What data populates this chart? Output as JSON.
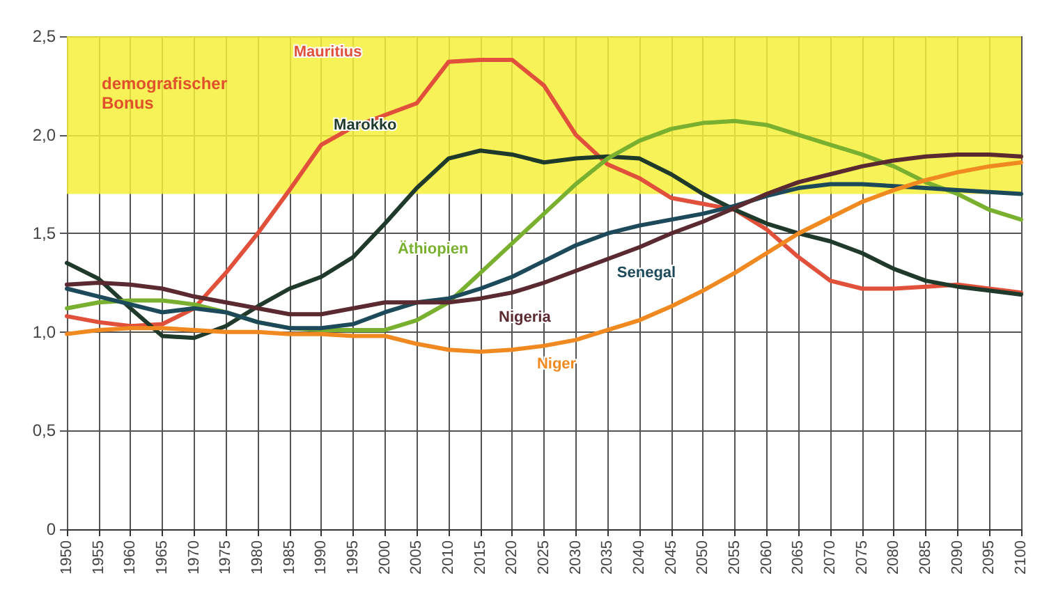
{
  "chart_data": {
    "type": "line",
    "x": [
      1950,
      1955,
      1960,
      1965,
      1970,
      1975,
      1980,
      1985,
      1990,
      1995,
      2000,
      2005,
      2010,
      2015,
      2020,
      2025,
      2030,
      2035,
      2040,
      2045,
      2050,
      2055,
      2060,
      2065,
      2070,
      2075,
      2080,
      2085,
      2090,
      2095,
      2100
    ],
    "series": [
      {
        "name": "Mauritius",
        "color": "#e0503a",
        "values": [
          1.08,
          1.05,
          1.03,
          1.04,
          1.12,
          1.3,
          1.5,
          1.72,
          1.95,
          2.04,
          2.1,
          2.16,
          2.37,
          2.38,
          2.38,
          2.25,
          2.0,
          1.85,
          1.78,
          1.68,
          1.65,
          1.62,
          1.52,
          1.38,
          1.26,
          1.22,
          1.22,
          1.23,
          1.24,
          1.22,
          1.2
        ]
      },
      {
        "name": "Marokko",
        "color": "#1f3a2a",
        "values": [
          1.35,
          1.27,
          1.12,
          0.98,
          0.97,
          1.03,
          1.13,
          1.22,
          1.28,
          1.38,
          1.55,
          1.73,
          1.88,
          1.92,
          1.9,
          1.86,
          1.88,
          1.89,
          1.88,
          1.8,
          1.7,
          1.62,
          1.55,
          1.5,
          1.46,
          1.4,
          1.32,
          1.26,
          1.23,
          1.21,
          1.19
        ]
      },
      {
        "name": "Äthiopien",
        "color": "#7ab030",
        "values": [
          1.12,
          1.15,
          1.16,
          1.16,
          1.14,
          1.1,
          1.05,
          1.02,
          1.01,
          1.01,
          1.01,
          1.06,
          1.15,
          1.3,
          1.45,
          1.6,
          1.75,
          1.88,
          1.97,
          2.03,
          2.06,
          2.07,
          2.05,
          2.0,
          1.95,
          1.9,
          1.84,
          1.76,
          1.7,
          1.62,
          1.57
        ]
      },
      {
        "name": "Senegal",
        "color": "#1d4a5a",
        "values": [
          1.22,
          1.18,
          1.14,
          1.1,
          1.12,
          1.1,
          1.05,
          1.02,
          1.02,
          1.04,
          1.1,
          1.15,
          1.17,
          1.22,
          1.28,
          1.36,
          1.44,
          1.5,
          1.54,
          1.57,
          1.6,
          1.64,
          1.69,
          1.73,
          1.75,
          1.75,
          1.74,
          1.73,
          1.72,
          1.71,
          1.7
        ]
      },
      {
        "name": "Nigeria",
        "color": "#5a2a30",
        "values": [
          1.24,
          1.25,
          1.24,
          1.22,
          1.18,
          1.15,
          1.12,
          1.09,
          1.09,
          1.12,
          1.15,
          1.15,
          1.15,
          1.17,
          1.2,
          1.25,
          1.31,
          1.37,
          1.43,
          1.5,
          1.56,
          1.63,
          1.7,
          1.76,
          1.8,
          1.84,
          1.87,
          1.89,
          1.9,
          1.9,
          1.89
        ]
      },
      {
        "name": "Niger",
        "color": "#f08a20",
        "values": [
          0.99,
          1.01,
          1.02,
          1.02,
          1.01,
          1.0,
          1.0,
          0.99,
          0.99,
          0.98,
          0.98,
          0.94,
          0.91,
          0.9,
          0.91,
          0.93,
          0.96,
          1.01,
          1.06,
          1.13,
          1.21,
          1.3,
          1.4,
          1.5,
          1.58,
          1.66,
          1.72,
          1.77,
          1.81,
          1.84,
          1.86
        ]
      }
    ],
    "bands": [
      {
        "axis": "y",
        "from": 1.7,
        "to": 2.5,
        "label": "demografischer Bonus",
        "color": "#f5f03a"
      }
    ],
    "xlim": [
      1950,
      2100
    ],
    "xticks": [
      1950,
      1955,
      1960,
      1965,
      1970,
      1975,
      1980,
      1985,
      1990,
      1995,
      2000,
      2005,
      2010,
      2015,
      2020,
      2025,
      2030,
      2035,
      2040,
      2045,
      2050,
      2055,
      2060,
      2065,
      2070,
      2075,
      2080,
      2085,
      2090,
      2095,
      2100
    ],
    "ylim": [
      0,
      2.5
    ],
    "yticks": [
      0,
      {
        "value": 0.5,
        "label": "0,5"
      },
      {
        "value": 1,
        "label": "1,0"
      },
      {
        "value": 1.5,
        "label": "1,5"
      },
      {
        "value": 2,
        "label": "2,0"
      },
      {
        "value": 2.5,
        "label": "2,5"
      }
    ],
    "grid": true,
    "legend": false,
    "marker": "none",
    "line_style": "solid"
  }
}
